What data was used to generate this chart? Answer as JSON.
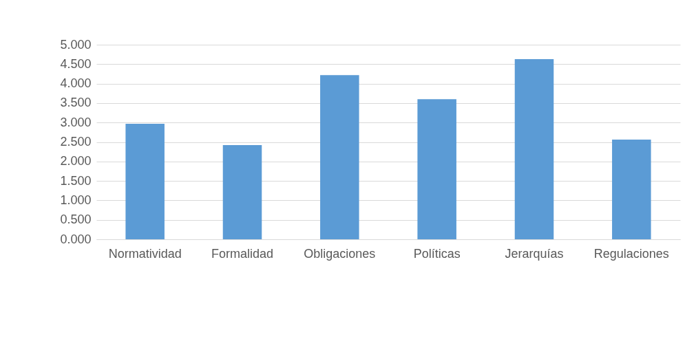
{
  "chart_data": {
    "type": "bar",
    "categories": [
      "Normatividad",
      "Formalidad",
      "Obligaciones",
      "Políticas",
      "Jerarquías",
      "Regulaciones"
    ],
    "values": [
      2.97,
      2.42,
      4.22,
      3.6,
      4.63,
      2.56
    ],
    "color": "#5b9bd5",
    "ylim": [
      0,
      5
    ],
    "yticks": [
      {
        "value": 0,
        "label": "0.000"
      },
      {
        "value": 0.5,
        "label": "0.500"
      },
      {
        "value": 1,
        "label": "1.000"
      },
      {
        "value": 1.5,
        "label": "1.500"
      },
      {
        "value": 2,
        "label": "2.000"
      },
      {
        "value": 2.5,
        "label": "2.500"
      },
      {
        "value": 3,
        "label": "3.000"
      },
      {
        "value": 3.5,
        "label": "3.500"
      },
      {
        "value": 4,
        "label": "4.000"
      },
      {
        "value": 4.5,
        "label": "4.500"
      },
      {
        "value": 5,
        "label": "5.000"
      }
    ],
    "grid": "y"
  }
}
